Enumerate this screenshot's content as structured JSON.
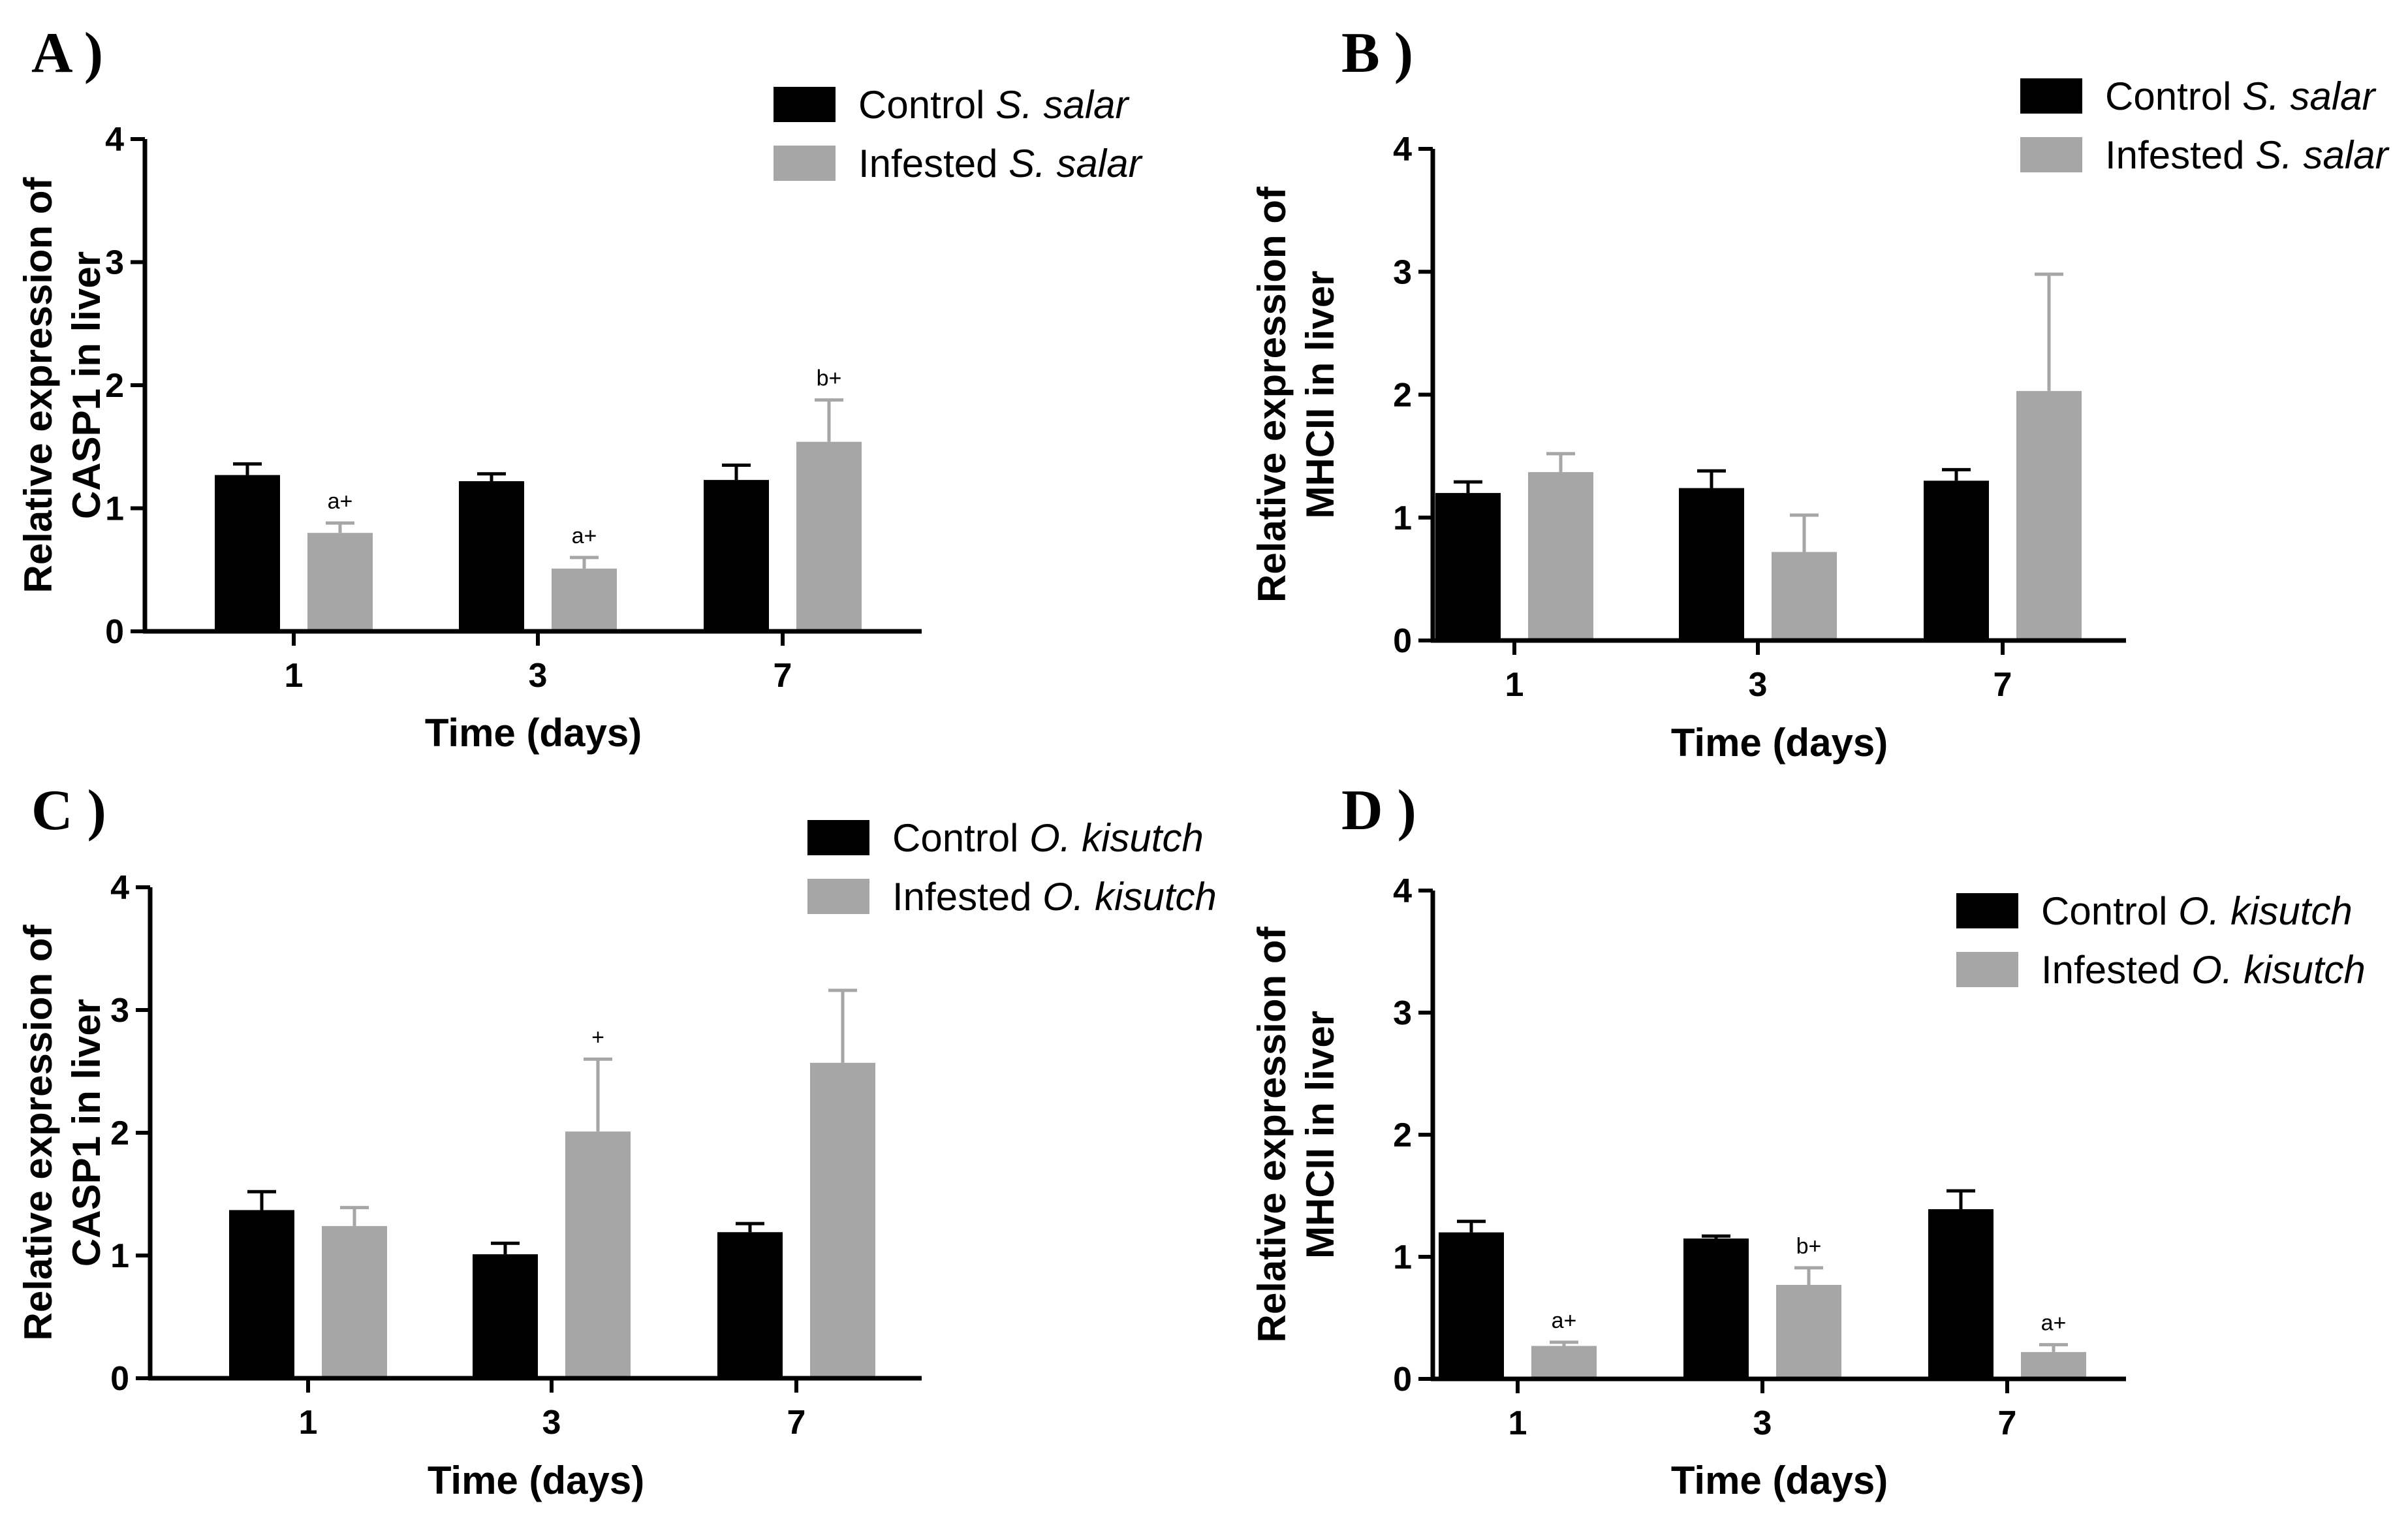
{
  "colors": {
    "control": "#000000",
    "infested": "#a6a6a6",
    "axis": "#000000"
  },
  "chart_data": [
    {
      "panel_label": "A )",
      "type": "bar",
      "categories": [
        "1",
        "3",
        "7"
      ],
      "xlabel": "Time (days)",
      "ylabel_lines": [
        "Relative expression of",
        "CASP1 in liver"
      ],
      "ylim": [
        0,
        4
      ],
      "yticks": [
        "0",
        "1",
        "2",
        "3",
        "4"
      ],
      "series": [
        {
          "name": "Control",
          "species": "S. salar",
          "values": [
            1.27,
            1.22,
            1.23
          ],
          "errors": [
            0.09,
            0.06,
            0.12
          ]
        },
        {
          "name": "Infested",
          "species": "S. salar",
          "values": [
            0.8,
            0.51,
            1.54
          ],
          "errors": [
            0.08,
            0.09,
            0.34
          ]
        }
      ],
      "annotations": [
        "a+",
        "a+",
        "b+"
      ]
    },
    {
      "panel_label": "B )",
      "type": "bar",
      "categories": [
        "1",
        "3",
        "7"
      ],
      "xlabel": "Time (days)",
      "ylabel_lines": [
        "Relative expression of",
        "MHCII in liver"
      ],
      "ylim": [
        0,
        4
      ],
      "yticks": [
        "0",
        "1",
        "2",
        "3",
        "4"
      ],
      "series": [
        {
          "name": "Control",
          "species": "S. salar",
          "values": [
            1.2,
            1.24,
            1.3
          ],
          "errors": [
            0.09,
            0.14,
            0.09
          ]
        },
        {
          "name": "Infested",
          "species": "S. salar",
          "values": [
            1.37,
            0.72,
            2.03
          ],
          "errors": [
            0.15,
            0.3,
            0.95
          ]
        }
      ],
      "annotations": [
        "",
        "",
        ""
      ]
    },
    {
      "panel_label": "C )",
      "type": "bar",
      "categories": [
        "1",
        "3",
        "7"
      ],
      "xlabel": "Time (days)",
      "ylabel_lines": [
        "Relative expression of",
        "CASP1 in liver"
      ],
      "ylim": [
        0,
        4
      ],
      "yticks": [
        "0",
        "1",
        "2",
        "3",
        "4"
      ],
      "series": [
        {
          "name": "Control",
          "species": "O. kisutch",
          "values": [
            1.37,
            1.01,
            1.19
          ],
          "errors": [
            0.15,
            0.09,
            0.07
          ]
        },
        {
          "name": "Infested",
          "species": "O. kisutch",
          "values": [
            1.24,
            2.01,
            2.57
          ],
          "errors": [
            0.15,
            0.59,
            0.59
          ]
        }
      ],
      "annotations": [
        "",
        "+",
        ""
      ]
    },
    {
      "panel_label": "D )",
      "type": "bar",
      "categories": [
        "1",
        "3",
        "7"
      ],
      "xlabel": "Time (days)",
      "ylabel_lines": [
        "Relative expression of",
        "MHCII in liver"
      ],
      "ylim": [
        0,
        4
      ],
      "yticks": [
        "0",
        "1",
        "2",
        "3",
        "4"
      ],
      "series": [
        {
          "name": "Control",
          "species": "O. kisutch",
          "values": [
            1.2,
            1.15,
            1.39
          ],
          "errors": [
            0.09,
            0.02,
            0.15
          ]
        },
        {
          "name": "Infested",
          "species": "O. kisutch",
          "values": [
            0.27,
            0.77,
            0.22
          ],
          "errors": [
            0.03,
            0.14,
            0.06
          ]
        }
      ],
      "annotations": [
        "a+",
        "b+",
        "a+"
      ]
    }
  ]
}
